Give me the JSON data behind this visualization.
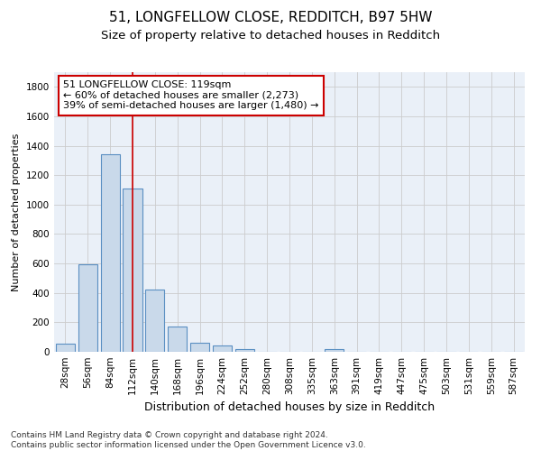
{
  "title": "51, LONGFELLOW CLOSE, REDDITCH, B97 5HW",
  "subtitle": "Size of property relative to detached houses in Redditch",
  "xlabel": "Distribution of detached houses by size in Redditch",
  "ylabel": "Number of detached properties",
  "categories": [
    "28sqm",
    "56sqm",
    "84sqm",
    "112sqm",
    "140sqm",
    "168sqm",
    "196sqm",
    "224sqm",
    "252sqm",
    "280sqm",
    "308sqm",
    "335sqm",
    "363sqm",
    "391sqm",
    "419sqm",
    "447sqm",
    "475sqm",
    "503sqm",
    "531sqm",
    "559sqm",
    "587sqm"
  ],
  "values": [
    55,
    595,
    1340,
    1110,
    425,
    170,
    60,
    40,
    20,
    0,
    0,
    0,
    20,
    0,
    0,
    0,
    0,
    0,
    0,
    0,
    0
  ],
  "bar_color": "#c9d9ea",
  "bar_edge_color": "#5a8fc2",
  "grid_color": "#cccccc",
  "bg_color": "#eaf0f8",
  "annotation_box_color": "#cc0000",
  "annotation_text": "51 LONGFELLOW CLOSE: 119sqm\n← 60% of detached houses are smaller (2,273)\n39% of semi-detached houses are larger (1,480) →",
  "property_line_x": 3.0,
  "ylim": [
    0,
    1900
  ],
  "yticks": [
    0,
    200,
    400,
    600,
    800,
    1000,
    1200,
    1400,
    1600,
    1800
  ],
  "footer": "Contains HM Land Registry data © Crown copyright and database right 2024.\nContains public sector information licensed under the Open Government Licence v3.0.",
  "title_fontsize": 11,
  "subtitle_fontsize": 9.5,
  "xlabel_fontsize": 9,
  "ylabel_fontsize": 8,
  "tick_fontsize": 7.5,
  "annot_fontsize": 8,
  "footer_fontsize": 6.5
}
